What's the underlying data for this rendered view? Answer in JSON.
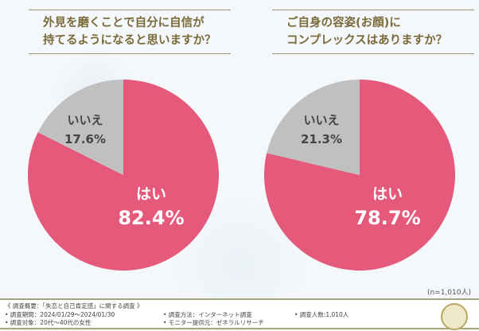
{
  "chart_data": [
    {
      "type": "pie",
      "title": "外見を磨くことで自分に自信が持てるようになると思いますか？",
      "slices": [
        {
          "label": "はい",
          "value": 82.4,
          "display": "82.4%",
          "color": "#e5597b"
        },
        {
          "label": "いいえ",
          "value": 17.6,
          "display": "17.6%",
          "color": "#c0c0c0"
        }
      ]
    },
    {
      "type": "pie",
      "title": "ご自身の容姿(お顔)にコンプレックスはありますか？",
      "slices": [
        {
          "label": "はい",
          "value": 78.7,
          "display": "78.7%",
          "color": "#e5597b"
        },
        {
          "label": "いいえ",
          "value": 21.3,
          "display": "21.3%",
          "color": "#c0c0c0"
        }
      ]
    }
  ],
  "titles": {
    "left_line1": "外見を磨くことで自分に自信が",
    "left_line2": "持てるようになると思いますか？",
    "right_line1": "ご自身の容姿(お顔)に",
    "right_line2": "コンプレックスはありますか？"
  },
  "sample": "(n=1,010人)",
  "footer": {
    "summary": "《 調査概要：「失恋と自己肯定感」に関する調査 》",
    "period": "• 調査期間：2024/01/29〜2024/01/30",
    "target": "• 調査対象：20代〜40代の女性",
    "method": "• 調査方法：インターネット調査",
    "provider": "• モニター提供元：ゼネラルリサーチ",
    "count": "• 調査人数:1,010人"
  }
}
